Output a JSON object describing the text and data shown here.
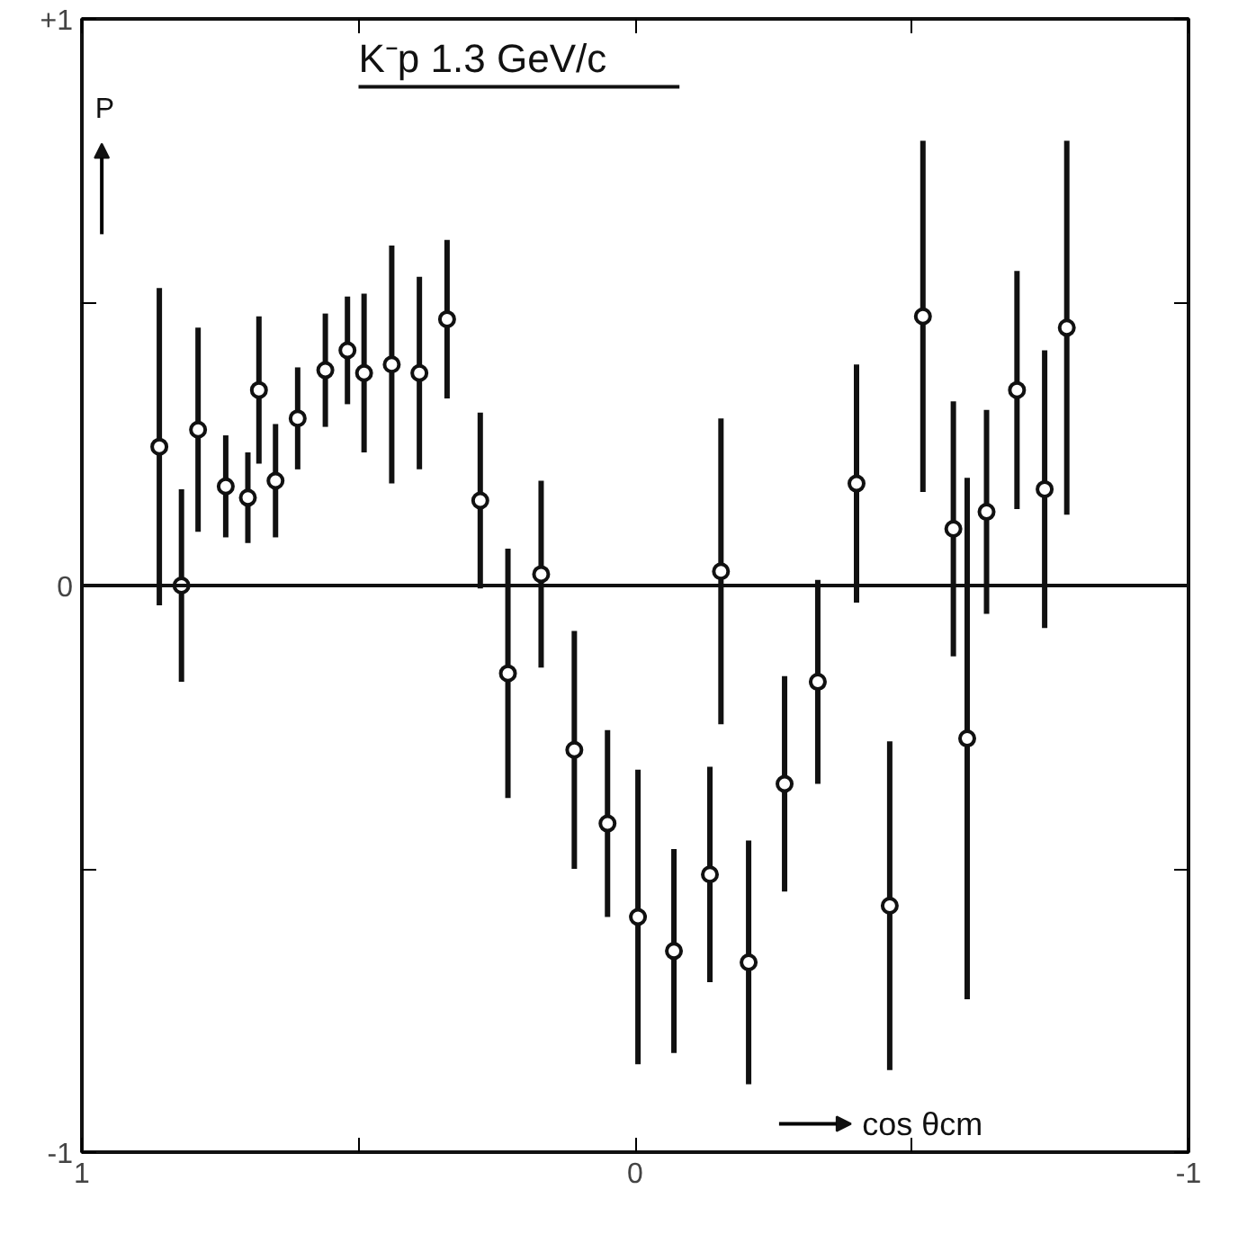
{
  "chart_data": {
    "type": "scatter",
    "title": "K⁻p  1.3 GeV/c",
    "xlabel": "cos θcm",
    "ylabel": "P",
    "x": [
      0.86,
      0.82,
      0.79,
      0.74,
      0.7,
      0.68,
      0.65,
      0.61,
      0.56,
      0.52,
      0.49,
      0.44,
      0.39,
      0.34,
      0.28,
      0.23,
      0.17,
      0.11,
      0.05,
      -0.005,
      -0.07,
      -0.135,
      -0.155,
      -0.205,
      -0.27,
      -0.33,
      -0.4,
      -0.46,
      -0.52,
      -0.575,
      -0.6,
      -0.635,
      -0.69,
      -0.74,
      -0.78
    ],
    "values": [
      0.245,
      0.0,
      0.275,
      0.175,
      0.155,
      0.345,
      0.185,
      0.295,
      0.38,
      0.415,
      0.375,
      0.39,
      0.375,
      0.47,
      0.15,
      -0.155,
      0.02,
      -0.29,
      -0.42,
      -0.585,
      -0.645,
      -0.51,
      0.025,
      -0.665,
      -0.35,
      -0.17,
      0.18,
      -0.565,
      0.475,
      0.1,
      -0.27,
      0.13,
      0.345,
      0.17,
      0.455
    ],
    "errors": [
      0.28,
      0.17,
      0.18,
      0.09,
      0.08,
      0.13,
      0.1,
      0.09,
      0.1,
      0.095,
      0.14,
      0.21,
      0.17,
      0.14,
      0.155,
      0.22,
      0.165,
      0.21,
      0.165,
      0.26,
      0.18,
      0.19,
      0.27,
      0.215,
      0.19,
      0.18,
      0.21,
      0.29,
      0.31,
      0.225,
      0.46,
      0.18,
      0.21,
      0.245,
      0.33
    ],
    "color": "#111111",
    "marker": "circle",
    "grid": false,
    "xlim": [
      1,
      -1
    ],
    "ylim": [
      -1,
      1
    ],
    "xticks": [
      1,
      {
        "value": 0.5,
        "label": null
      },
      0,
      {
        "value": -0.5,
        "label": null
      },
      -1
    ],
    "yticks": [
      -1,
      {
        "value": -0.5,
        "label": null
      },
      0,
      {
        "value": 0.5,
        "label": null
      },
      {
        "value": 1,
        "label": "+1"
      }
    ],
    "ref_lines": [
      {
        "axis": "y",
        "value": 0,
        "label": null,
        "color": "#111111"
      }
    ]
  }
}
